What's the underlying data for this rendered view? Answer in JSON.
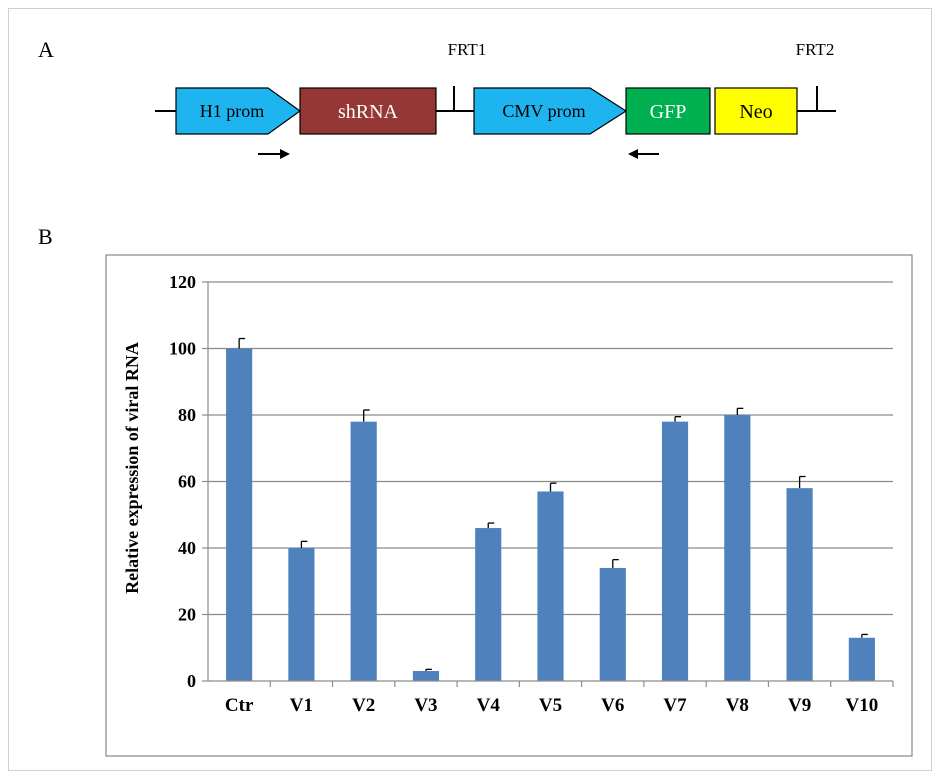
{
  "panel_a": {
    "label": "A",
    "frt1": "FRT1",
    "frt2": "FRT2",
    "elements": {
      "h1_prom": {
        "label": "H1 prom",
        "color": "#1eb4ef"
      },
      "shrna": {
        "label": "shRNA",
        "color": "#953735"
      },
      "cmv_prom": {
        "label": "CMV prom",
        "color": "#1eb4ef"
      },
      "gfp": {
        "label": "GFP",
        "color": "#00b050"
      },
      "neo": {
        "label": "Neo",
        "color": "#ffff00"
      }
    }
  },
  "panel_b": {
    "label": "B"
  },
  "chart_data": {
    "type": "bar",
    "categories": [
      "Ctr",
      "V1",
      "V2",
      "V3",
      "V4",
      "V5",
      "V6",
      "V7",
      "V8",
      "V9",
      "V10"
    ],
    "series": [
      {
        "values": [
          100,
          40,
          78,
          3,
          46,
          57,
          34,
          78,
          80,
          58,
          13
        ],
        "errors": [
          3,
          2,
          3.5,
          0.5,
          1.5,
          2.5,
          2.5,
          1.5,
          2,
          3.5,
          1
        ]
      }
    ],
    "ylabel": "Relative expression of viral RNA",
    "ylim": [
      0,
      120
    ],
    "yticks": [
      0,
      20,
      40,
      60,
      80,
      100,
      120
    ],
    "grid": true,
    "bar_color": "#4f81bd"
  }
}
